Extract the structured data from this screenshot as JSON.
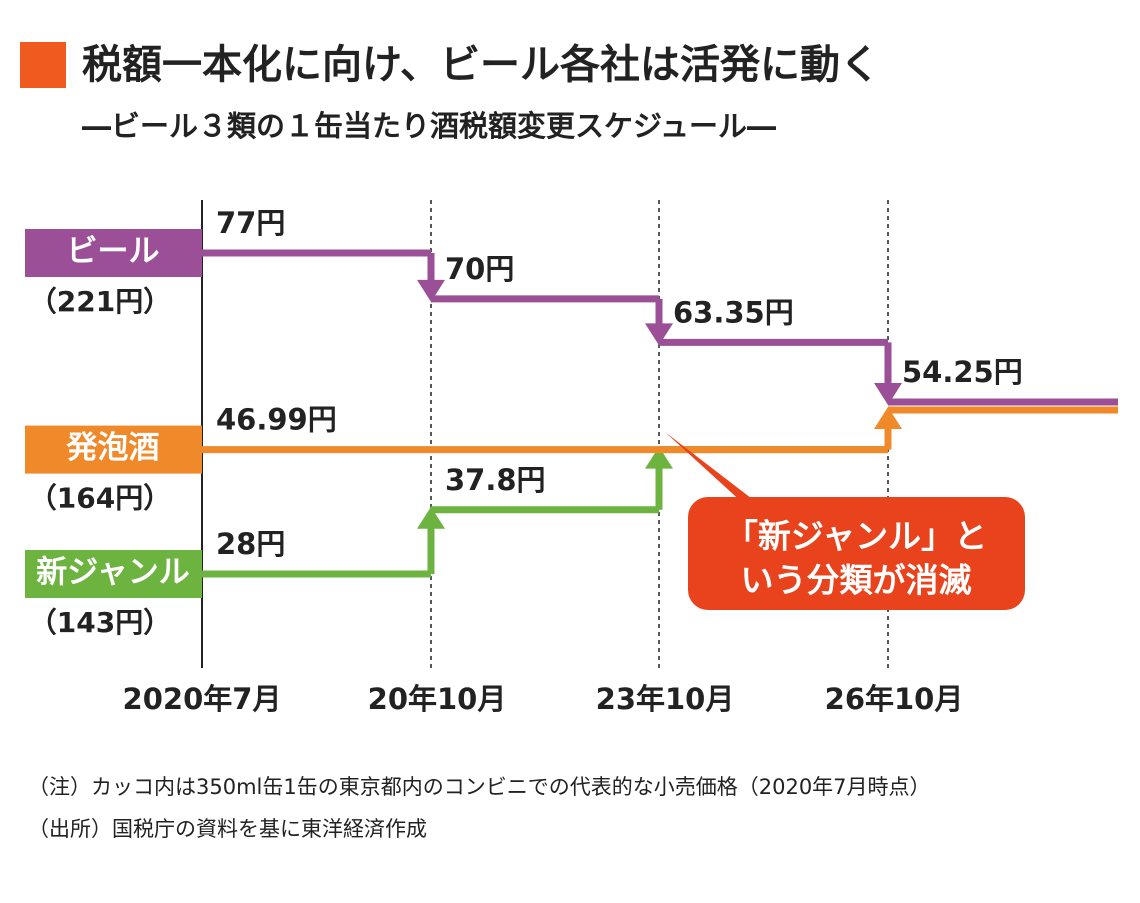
{
  "chart_data": {
    "type": "step",
    "title": "税額一本化に向け、ビール各社は活発に動く",
    "subtitle": "―ビール３類の１缶当たり酒税額変更スケジュール―",
    "categories": [
      "2020年7月",
      "20年10月",
      "23年10月",
      "26年10月"
    ],
    "series": [
      {
        "name": "ビール",
        "price_label": "（221円）",
        "color": "#9b4f96",
        "values": [
          77,
          70,
          63.35,
          54.25
        ],
        "value_labels": [
          "77円",
          "70円",
          "63.35円",
          "54.25円"
        ]
      },
      {
        "name": "発泡酒",
        "price_label": "（164円）",
        "color": "#f0892a",
        "values": [
          46.99,
          46.99,
          46.99,
          54.25
        ],
        "value_labels": [
          "46.99円",
          null,
          null,
          null
        ]
      },
      {
        "name": "新ジャンル",
        "price_label": "（143円）",
        "color": "#6cb33f",
        "values": [
          28,
          37.8,
          46.99,
          null
        ],
        "value_labels": [
          "28円",
          "37.8円",
          null,
          null
        ]
      }
    ],
    "annotation": [
      "「新ジャンル」と",
      "いう分類が消滅"
    ],
    "notes": [
      "（注）カッコ内は350ml缶1缶の東京都内のコンビニでの代表的な小売価格（2020年7月時点）",
      "（出所）国税庁の資料を基に東洋経済作成"
    ]
  }
}
